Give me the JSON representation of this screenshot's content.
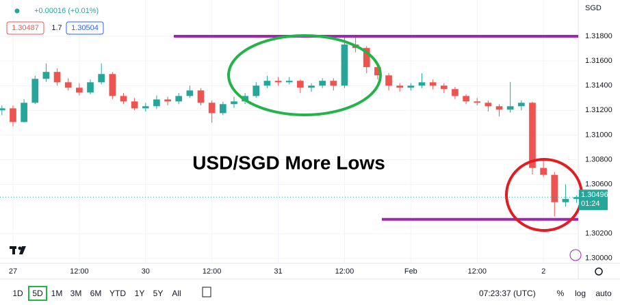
{
  "chart_data": {
    "type": "candlestick",
    "title": "USD/SGD More Lows",
    "currency": "SGD",
    "change": "+0.00016 (+0.01%)",
    "bid": "1.30487",
    "spread": "1.7",
    "ask": "1.30504",
    "countdown": "01:24",
    "x": [
      -2,
      0,
      2,
      4,
      6,
      8,
      10,
      12,
      14,
      16,
      18,
      20,
      22,
      24,
      26,
      28,
      30,
      32,
      34,
      36,
      38,
      40,
      42,
      44,
      46,
      48,
      50,
      52,
      54,
      56,
      58,
      60,
      62,
      64,
      66,
      68,
      70,
      72,
      74,
      76,
      78,
      80,
      82,
      84,
      86,
      88,
      90,
      92,
      94,
      96,
      98,
      100,
      102
    ],
    "open": [
      1.312,
      1.31216,
      1.31105,
      1.31261,
      1.31455,
      1.31511,
      1.31427,
      1.31383,
      1.31344,
      1.31427,
      1.31494,
      1.31316,
      1.31272,
      1.31216,
      1.31233,
      1.31288,
      1.31272,
      1.31316,
      1.31361,
      1.31261,
      1.31177,
      1.3125,
      1.31272,
      1.31316,
      1.314,
      1.31439,
      1.31427,
      1.31439,
      1.31383,
      1.314,
      1.31439,
      1.314,
      1.31733,
      1.31705,
      1.3155,
      1.31483,
      1.314,
      1.31383,
      1.314,
      1.31427,
      1.314,
      1.31372,
      1.31316,
      1.31272,
      1.31261,
      1.31233,
      1.31205,
      1.31233,
      1.31261,
      1.30733,
      1.30677,
      1.30455,
      1.30482
    ],
    "high": [
      1.3124,
      1.3124,
      1.3129,
      1.3148,
      1.3158,
      1.3154,
      1.3146,
      1.3142,
      1.3145,
      1.3158,
      1.3151,
      1.3134,
      1.313,
      1.3126,
      1.3132,
      1.3131,
      1.3134,
      1.314,
      1.3138,
      1.3128,
      1.3127,
      1.3131,
      1.3134,
      1.3143,
      1.3148,
      1.3147,
      1.3147,
      1.3145,
      1.3142,
      1.3146,
      1.3146,
      1.318,
      1.318,
      1.3172,
      1.3158,
      1.315,
      1.3142,
      1.3142,
      1.315,
      1.3145,
      1.3142,
      1.3139,
      1.3133,
      1.313,
      1.3128,
      1.3125,
      1.3143,
      1.3128,
      1.3127,
      1.308,
      1.307,
      1.306,
      1.3051
    ],
    "low": [
      1.3116,
      1.3107,
      1.311,
      1.3125,
      1.3143,
      1.314,
      1.3136,
      1.3132,
      1.3133,
      1.3141,
      1.3129,
      1.3125,
      1.312,
      1.3119,
      1.3121,
      1.3124,
      1.3125,
      1.313,
      1.3124,
      1.311,
      1.3116,
      1.3122,
      1.3125,
      1.313,
      1.3138,
      1.314,
      1.3141,
      1.3134,
      1.3135,
      1.3138,
      1.3136,
      1.3138,
      1.3167,
      1.315,
      1.3145,
      1.3136,
      1.3135,
      1.3136,
      1.3138,
      1.3137,
      1.3134,
      1.3129,
      1.3125,
      1.3124,
      1.3119,
      1.3115,
      1.3118,
      1.312,
      1.3068,
      1.3066,
      1.3034,
      1.3042,
      1.3045
    ],
    "close": [
      1.31216,
      1.31105,
      1.31261,
      1.31455,
      1.31511,
      1.31427,
      1.31383,
      1.31344,
      1.31427,
      1.31494,
      1.31316,
      1.31272,
      1.31216,
      1.31233,
      1.31288,
      1.31272,
      1.31316,
      1.31361,
      1.31261,
      1.31177,
      1.3125,
      1.31272,
      1.31316,
      1.314,
      1.31439,
      1.31427,
      1.31439,
      1.31383,
      1.314,
      1.31439,
      1.314,
      1.31733,
      1.31705,
      1.3155,
      1.31483,
      1.314,
      1.31383,
      1.314,
      1.31427,
      1.314,
      1.31372,
      1.31316,
      1.31272,
      1.31261,
      1.31233,
      1.31205,
      1.31233,
      1.31261,
      1.30733,
      1.30677,
      1.30455,
      1.30482,
      1.30496
    ],
    "up_color": "#26a69a",
    "down_color": "#ef5350",
    "xlim": [
      -2.35,
      102.3
    ],
    "xticks": [
      {
        "value": 0,
        "label": "27"
      },
      {
        "value": 12,
        "label": "12:00"
      },
      {
        "value": 24,
        "label": "30"
      },
      {
        "value": 36,
        "label": "12:00"
      },
      {
        "value": 48,
        "label": "31"
      },
      {
        "value": 60,
        "label": "12:00"
      },
      {
        "value": 72,
        "label": "Feb"
      },
      {
        "value": 84,
        "label": "12:00"
      },
      {
        "value": 96,
        "label": "2"
      }
    ],
    "ylim": [
      1.2996,
      1.32094
    ],
    "yticks": [
      {
        "value": 1.318,
        "label": "1.31800"
      },
      {
        "value": 1.316,
        "label": "1.31600"
      },
      {
        "value": 1.314,
        "label": "1.31400"
      },
      {
        "value": 1.312,
        "label": "1.31200"
      },
      {
        "value": 1.31,
        "label": "1.31000"
      },
      {
        "value": 1.308,
        "label": "1.30800"
      },
      {
        "value": 1.306,
        "label": "1.30600"
      },
      {
        "value": 1.302,
        "label": "1.30200"
      },
      {
        "value": 1.3,
        "label": "1.30000"
      }
    ],
    "grid": true,
    "hlines": [
      1.318,
      1.30316
    ],
    "hline_color": "#9c27b0"
  },
  "toolbar": {
    "ranges": [
      "1D",
      "5D",
      "1M",
      "3M",
      "6M",
      "YTD",
      "1Y",
      "5Y",
      "All"
    ],
    "active": "5D",
    "time": "07:23:37 (UTC)",
    "options": [
      "%",
      "log",
      "auto"
    ]
  }
}
